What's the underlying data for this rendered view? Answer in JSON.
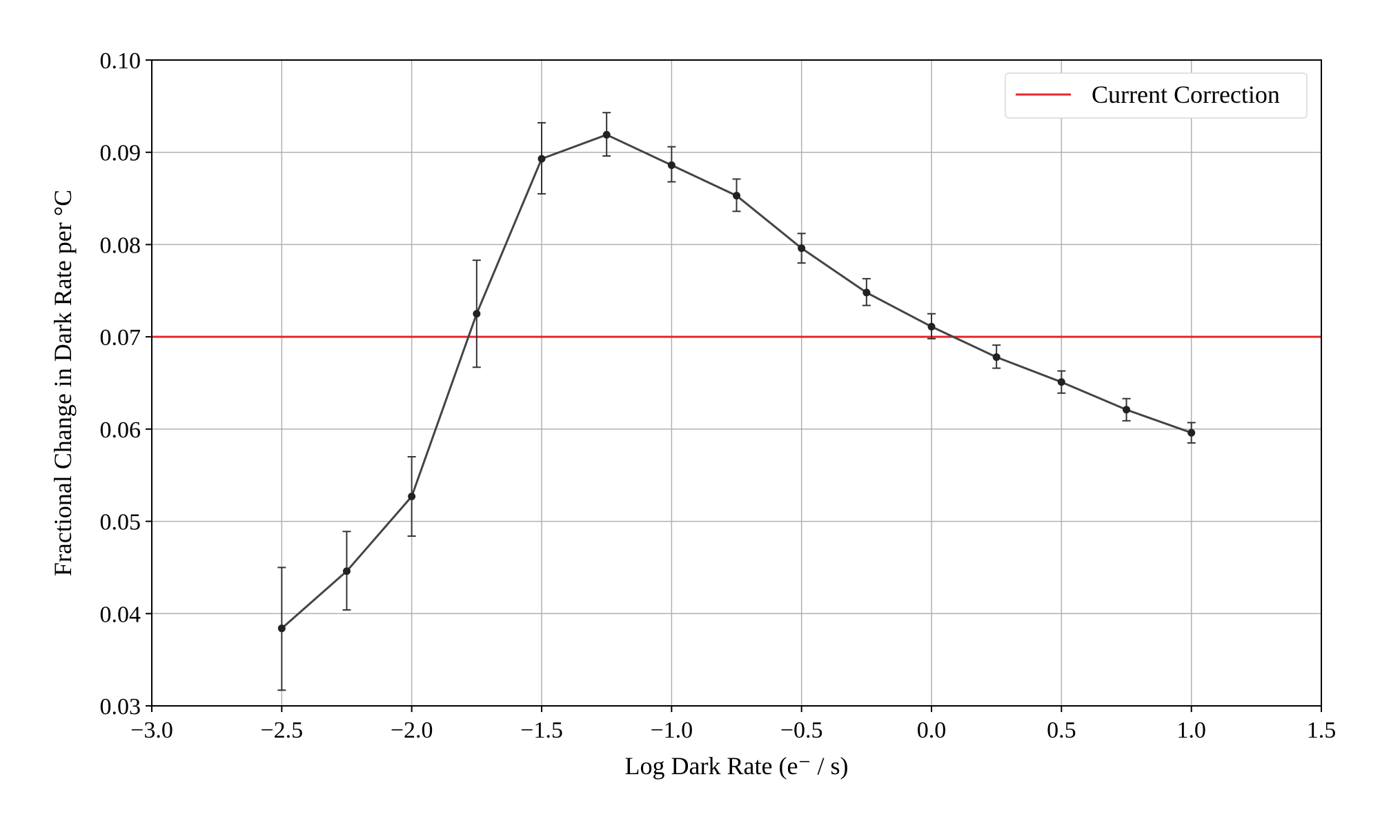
{
  "chart_data": {
    "type": "line",
    "title": "",
    "xlabel": "Log Dark Rate (e⁻ / s)",
    "ylabel": "Fractional Change in Dark Rate per °C",
    "xlim": [
      -3.0,
      1.5
    ],
    "ylim": [
      0.03,
      0.1
    ],
    "xticks": [
      -3.0,
      -2.5,
      -2.0,
      -1.5,
      -1.0,
      -0.5,
      0.0,
      0.5,
      1.0,
      1.5
    ],
    "xtick_labels": [
      "−3.0",
      "−2.5",
      "−2.0",
      "−1.5",
      "−1.0",
      "−0.5",
      "0.0",
      "0.5",
      "1.0",
      "1.5"
    ],
    "yticks": [
      0.03,
      0.04,
      0.05,
      0.06,
      0.07,
      0.08,
      0.09,
      0.1
    ],
    "ytick_labels": [
      "0.03",
      "0.04",
      "0.05",
      "0.06",
      "0.07",
      "0.08",
      "0.09",
      "0.10"
    ],
    "grid": true,
    "legend_position": "top-right",
    "series": [
      {
        "color": "#444444",
        "x": [
          -2.5,
          -2.25,
          -2.0,
          -1.75,
          -1.5,
          -1.25,
          -1.0,
          -0.75,
          -0.5,
          -0.25,
          0.0,
          0.25,
          0.5,
          0.75,
          1.0
        ],
        "y": [
          0.0384,
          0.0446,
          0.0527,
          0.0725,
          0.0893,
          0.0919,
          0.0886,
          0.0853,
          0.0796,
          0.0748,
          0.0711,
          0.0678,
          0.0651,
          0.0621,
          0.0596
        ],
        "yerr_low": [
          0.0317,
          0.0404,
          0.0484,
          0.0667,
          0.0855,
          0.0896,
          0.0868,
          0.0836,
          0.078,
          0.0734,
          0.0698,
          0.0666,
          0.0639,
          0.0609,
          0.0585
        ],
        "yerr_high": [
          0.045,
          0.0489,
          0.057,
          0.0783,
          0.0932,
          0.0943,
          0.0906,
          0.0871,
          0.0812,
          0.0763,
          0.0725,
          0.0691,
          0.0663,
          0.0633,
          0.0607
        ]
      }
    ],
    "reference_lines": [
      {
        "name": "Current Correction",
        "y": 0.07,
        "color": "#e8262a"
      }
    ]
  }
}
